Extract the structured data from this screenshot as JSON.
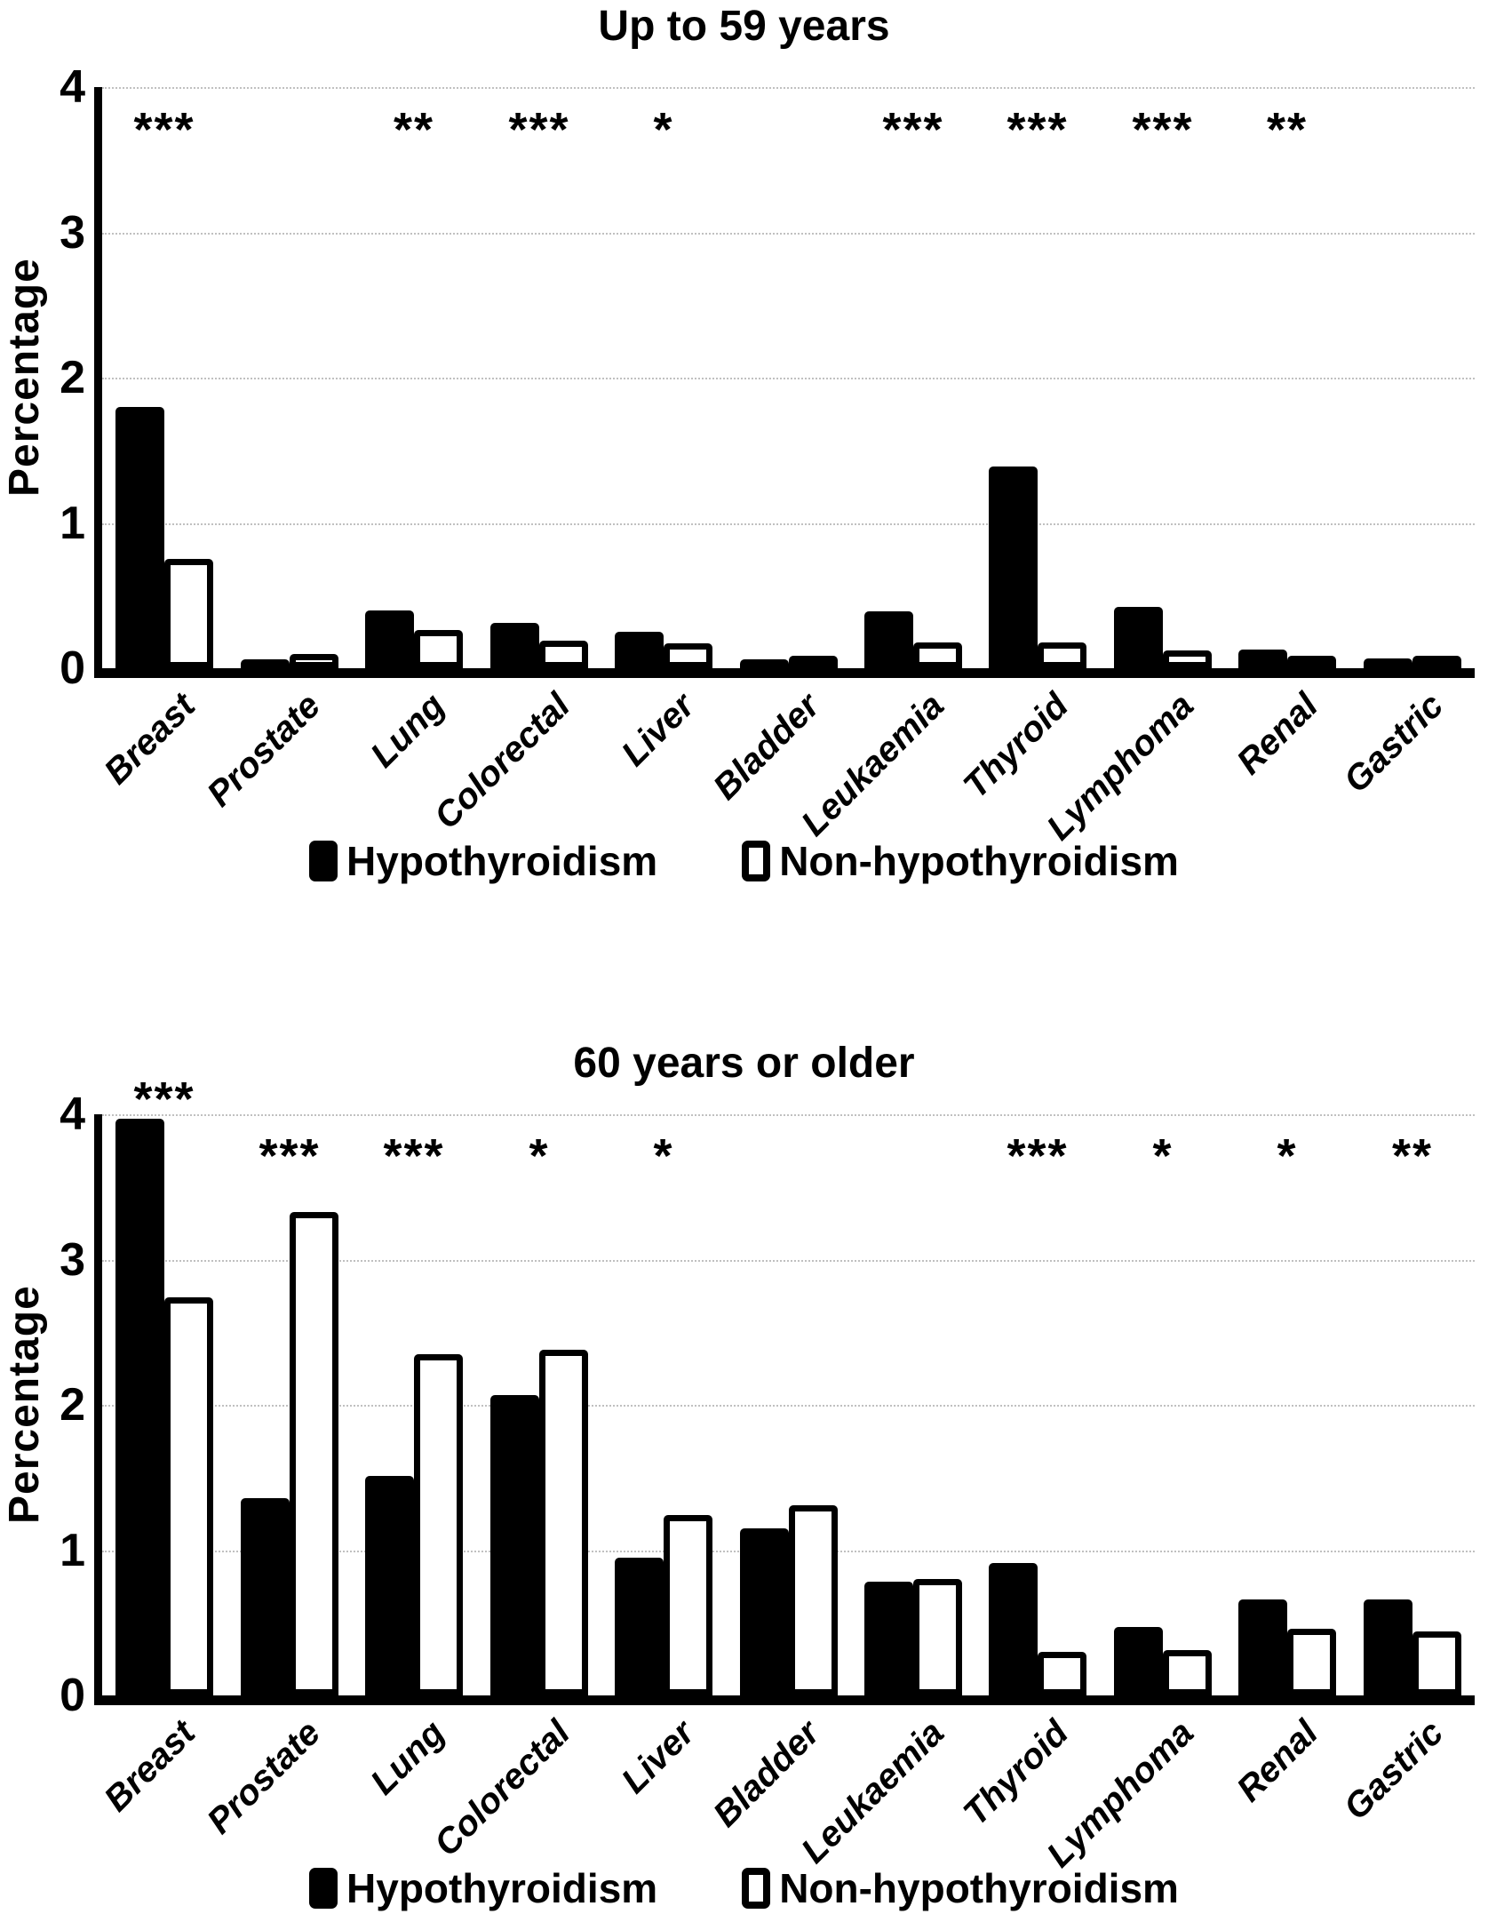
{
  "chart_data": [
    {
      "type": "bar",
      "title": "Up to 59 years",
      "ylabel": "Percentage",
      "ylim": [
        0,
        4
      ],
      "yticks": [
        0,
        1,
        2,
        3,
        4
      ],
      "grid": "horizontal-dotted-light-gray",
      "legend_position": "bottom-center",
      "categories": [
        "Breast",
        "Prostate",
        "Lung",
        "Colorectal",
        "Liver",
        "Bladder",
        "Leukaemia",
        "Thyroid",
        "Lymphoma",
        "Renal",
        "Gastric"
      ],
      "series": [
        {
          "name": "Hypothyroidism",
          "style": "filled-black",
          "values": [
            1.8,
            0.06,
            0.4,
            0.31,
            0.25,
            0.06,
            0.39,
            1.39,
            0.42,
            0.13,
            0.07
          ]
        },
        {
          "name": "Non-hypothyroidism",
          "style": "open-white-black-border",
          "values": [
            0.75,
            0.1,
            0.26,
            0.19,
            0.17,
            0.05,
            0.18,
            0.18,
            0.12,
            0.06,
            0.05
          ]
        }
      ],
      "significance": [
        "***",
        "",
        "**",
        "***",
        "*",
        "",
        "***",
        "***",
        "***",
        "**",
        ""
      ]
    },
    {
      "type": "bar",
      "title": "60 years or older",
      "ylabel": "Percentage",
      "ylim": [
        0,
        4
      ],
      "yticks": [
        0,
        1,
        2,
        3,
        4
      ],
      "grid": "horizontal-dotted-light-gray",
      "legend_position": "bottom-center",
      "categories": [
        "Breast",
        "Prostate",
        "Lung",
        "Colorectal",
        "Liver",
        "Bladder",
        "Leukaemia",
        "Thyroid",
        "Lymphoma",
        "Renal",
        "Gastric"
      ],
      "series": [
        {
          "name": "Hypothyroidism",
          "style": "filled-black",
          "values": [
            3.97,
            1.36,
            1.51,
            2.07,
            0.95,
            1.15,
            0.78,
            0.91,
            0.47,
            0.66,
            0.66
          ]
        },
        {
          "name": "Non-hypothyroidism",
          "style": "open-white-black-border",
          "values": [
            2.74,
            3.33,
            2.35,
            2.38,
            1.24,
            1.31,
            0.8,
            0.3,
            0.31,
            0.46,
            0.44
          ]
        }
      ],
      "significance": [
        "***",
        "***",
        "***",
        "*",
        "*",
        "",
        "",
        "***",
        "*",
        "*",
        "**"
      ]
    }
  ],
  "colors": {
    "bar_filled": "#000000",
    "bar_open_fill": "#ffffff",
    "bar_border": "#000000",
    "axis": "#000000",
    "gridline": "#c0c0c0",
    "background": "#ffffff",
    "text": "#000000"
  }
}
